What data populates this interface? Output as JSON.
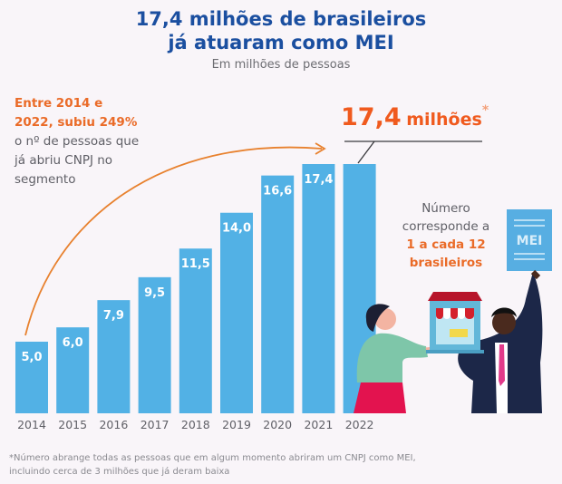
{
  "header": {
    "title_line1": "17,4 milhões de brasileiros",
    "title_line2": "já atuaram como MEI",
    "subtitle": "Em milhões de pessoas"
  },
  "lead_text": {
    "highlight_line1": "Entre 2014 e",
    "highlight_line2": "2022, subiu 249%",
    "line3": "o nº de pessoas que",
    "line4": "já abriu CNPJ no",
    "line5": "segmento"
  },
  "callout": {
    "value": "17,4",
    "unit": "milhões",
    "asterisk": "*"
  },
  "ratio_text": {
    "line1": "Número",
    "line2": "corresponde a",
    "line3": "1 a cada 12",
    "line4": "brasileiros"
  },
  "illustration": {
    "sign_text": "MEI"
  },
  "footnote": {
    "line1": "*Número abrange todas as pessoas que em algum momento abriram um CNPJ como MEI,",
    "line2": "incluindo cerca de 3 milhões que já deram baixa"
  },
  "colors": {
    "title": "#1b4fa0",
    "bar": "#52b1e5",
    "accent_orange": "#ea6b28",
    "callout_orange": "#f05a1e",
    "body_text": "#5f5f66",
    "background": "#f9f5f9"
  },
  "chart_data": {
    "type": "bar",
    "title": "17,4 milhões de brasileiros já atuaram como MEI",
    "subtitle": "Em milhões de pessoas",
    "xlabel": "",
    "ylabel": "",
    "categories": [
      "2014",
      "2015",
      "2016",
      "2017",
      "2018",
      "2019",
      "2020",
      "2021",
      "2022"
    ],
    "values": [
      5.0,
      6.0,
      7.9,
      9.5,
      11.5,
      14.0,
      16.6,
      17.4,
      17.4
    ],
    "data_labels": [
      "5,0",
      "6,0",
      "7,9",
      "9,5",
      "11,5",
      "14,0",
      "16,6",
      "17,4",
      ""
    ],
    "ylim": [
      0,
      17.4
    ],
    "grid": false,
    "legend": "none",
    "annotations": [
      "Entre 2014 e 2022, subiu 249% o nº de pessoas que já abriu CNPJ no segmento",
      "17,4 milhões*"
    ]
  }
}
